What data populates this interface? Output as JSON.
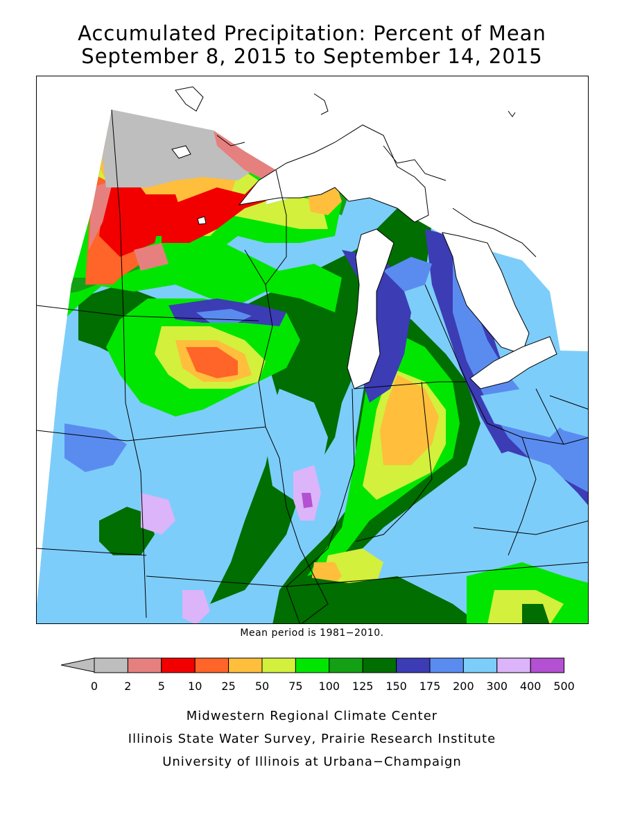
{
  "title": {
    "line1": "Accumulated Precipitation: Percent of Mean",
    "line2": "September 8, 2015 to September 14, 2015"
  },
  "mean_note": "Mean period is 1981−2010.",
  "legend": {
    "bins": [
      {
        "from": "0",
        "to": "2",
        "color": "#bebebe"
      },
      {
        "from": "2",
        "to": "5",
        "color": "#e6807f"
      },
      {
        "from": "5",
        "to": "10",
        "color": "#f20000"
      },
      {
        "from": "10",
        "to": "25",
        "color": "#ff6428"
      },
      {
        "from": "25",
        "to": "50",
        "color": "#ffbe3c"
      },
      {
        "from": "50",
        "to": "75",
        "color": "#d2f03c"
      },
      {
        "from": "75",
        "to": "100",
        "color": "#00e600"
      },
      {
        "from": "100",
        "to": "125",
        "color": "#14a014"
      },
      {
        "from": "125",
        "to": "150",
        "color": "#006e00"
      },
      {
        "from": "150",
        "to": "175",
        "color": "#3c3cb4"
      },
      {
        "from": "175",
        "to": "200",
        "color": "#5a8cf0"
      },
      {
        "from": "200",
        "to": "300",
        "color": "#7dcdfa"
      },
      {
        "from": "300",
        "to": "400",
        "color": "#dcb4fa"
      },
      {
        "from": "400",
        "to": "500",
        "color": "#b450d2"
      }
    ],
    "labels": [
      "0",
      "2",
      "5",
      "10",
      "25",
      "50",
      "75",
      "100",
      "125",
      "150",
      "175",
      "200",
      "300",
      "400",
      "500"
    ]
  },
  "credits": {
    "line1": "Midwestern Regional Climate Center",
    "line2": "Illinois State Water Survey, Prairie Research Institute",
    "line3": "University of Illinois at Urbana−Champaign"
  },
  "colors": {
    "frame": "#000000",
    "water": "#ffffff",
    "boundaries": "#000000"
  }
}
